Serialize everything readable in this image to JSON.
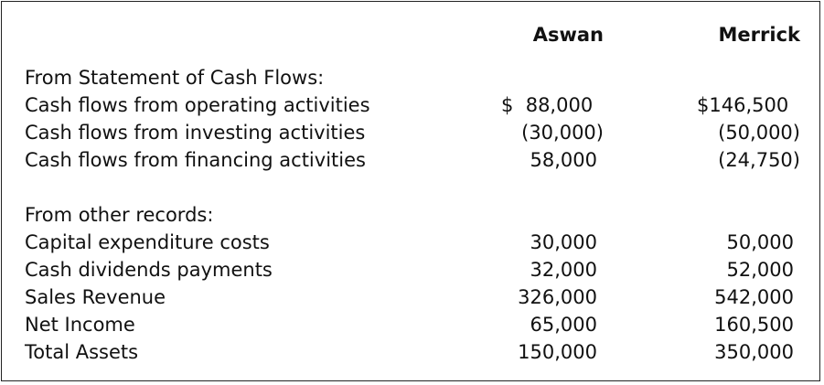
{
  "headers": {
    "company_a": "Aswan",
    "company_b": "Merrick"
  },
  "cash_flow_section": {
    "title": "From Statement of Cash Flows:",
    "rows": [
      {
        "label": "Cash flows from operating activities",
        "aswan": "$  88,000",
        "merrick": "$146,500"
      },
      {
        "label": "Cash flows from investing activities",
        "aswan": "(30,000)",
        "merrick": "(50,000)"
      },
      {
        "label": "Cash flows from financing activities",
        "aswan": "58,000",
        "merrick": "(24,750)"
      }
    ]
  },
  "other_records_section": {
    "title": "From other records:",
    "rows": [
      {
        "label": "Capital expenditure costs",
        "aswan": "30,000",
        "merrick": "50,000"
      },
      {
        "label": "Cash dividends payments",
        "aswan": "32,000",
        "merrick": "52,000"
      },
      {
        "label": "Sales Revenue",
        "aswan": "326,000",
        "merrick": "542,000"
      },
      {
        "label": "Net Income",
        "aswan": "65,000",
        "merrick": "160,500"
      },
      {
        "label": "Total Assets",
        "aswan": "150,000",
        "merrick": "350,000"
      }
    ]
  }
}
